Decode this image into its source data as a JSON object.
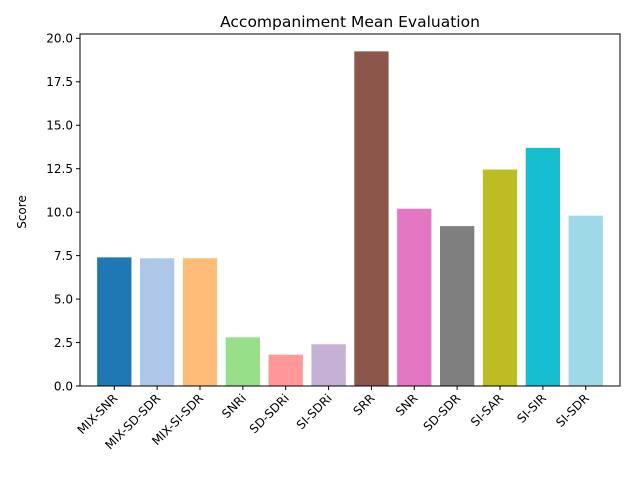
{
  "chart_data": {
    "type": "bar",
    "title": "Accompaniment Mean Evaluation",
    "xlabel": "",
    "ylabel": "Score",
    "ylim": [
      0,
      20.25
    ],
    "yticks": [
      0.0,
      2.5,
      5.0,
      7.5,
      10.0,
      12.5,
      15.0,
      17.5,
      20.0
    ],
    "ytick_labels": [
      "0.0",
      "2.5",
      "5.0",
      "7.5",
      "10.0",
      "12.5",
      "15.0",
      "17.5",
      "20.0"
    ],
    "grid": false,
    "categories": [
      "MIX-SNR",
      "MIX-SD-SDR",
      "MIX-SI-SDR",
      "SNRi",
      "SD-SDRi",
      "SI-SDRi",
      "SRR",
      "SNR",
      "SD-SDR",
      "SI-SAR",
      "SI-SIR",
      "SI-SDR"
    ],
    "values": [
      7.4,
      7.35,
      7.35,
      2.8,
      1.8,
      2.4,
      19.25,
      10.2,
      9.2,
      12.45,
      13.7,
      9.8
    ],
    "colors": [
      "#1f77b4",
      "#aec7e8",
      "#ffbb78",
      "#98df8a",
      "#ff9896",
      "#c5b0d5",
      "#8c564b",
      "#e377c2",
      "#7f7f7f",
      "#bcbd22",
      "#17becf",
      "#9edae5"
    ]
  }
}
